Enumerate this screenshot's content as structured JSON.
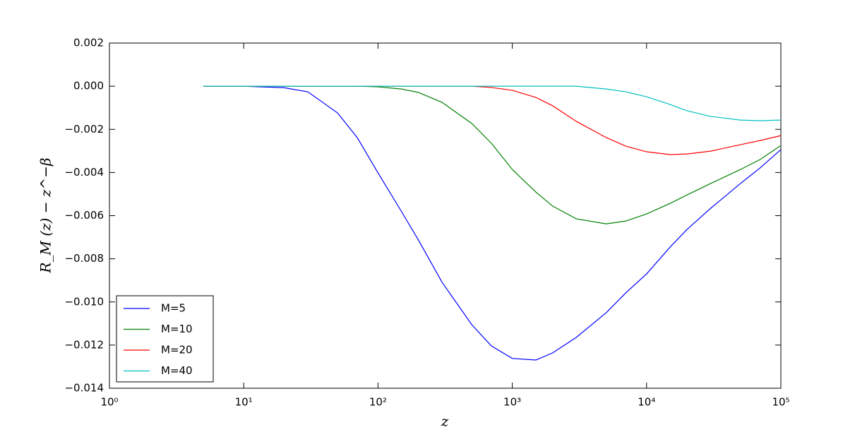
{
  "chart_data": {
    "type": "line",
    "xlabel": "z",
    "ylabel": "R_M (z) − z^−β",
    "xscale": "log",
    "legend": "lower left",
    "x": [
      5,
      10,
      20,
      30,
      50,
      70,
      100,
      150,
      200,
      300,
      500,
      700,
      1000,
      1500,
      2000,
      3000,
      5000,
      7000,
      10000,
      15000,
      20000,
      30000,
      50000,
      70000,
      100000
    ],
    "series": [
      {
        "name": "M=5",
        "color": "#0000ff",
        "values": [
          0,
          0,
          -7e-05,
          -0.00026,
          -0.00124,
          -0.00238,
          -0.00402,
          -0.00582,
          -0.00713,
          -0.00909,
          -0.01106,
          -0.01204,
          -0.01262,
          -0.01269,
          -0.01236,
          -0.01164,
          -0.0105,
          -0.00958,
          -0.0087,
          -0.00745,
          -0.00664,
          -0.00566,
          -0.00451,
          -0.00379,
          -0.00294
        ]
      },
      {
        "name": "M=10",
        "color": "#008000",
        "values": [
          0,
          0,
          0,
          0,
          0,
          0,
          -3e-05,
          -0.00013,
          -0.00029,
          -0.00075,
          -0.00173,
          -0.00265,
          -0.00386,
          -0.00491,
          -0.00556,
          -0.00615,
          -0.00638,
          -0.00625,
          -0.00592,
          -0.00543,
          -0.00504,
          -0.00451,
          -0.00386,
          -0.0034,
          -0.00275
        ]
      },
      {
        "name": "M=20",
        "color": "#ff0000",
        "values": [
          0,
          0,
          0,
          0,
          0,
          0,
          0,
          0,
          0,
          0,
          0,
          -6e-05,
          -0.00019,
          -0.00052,
          -0.00091,
          -0.00163,
          -0.00238,
          -0.00278,
          -0.00304,
          -0.00317,
          -0.00314,
          -0.00301,
          -0.00271,
          -0.00252,
          -0.00229
        ]
      },
      {
        "name": "M=40",
        "color": "#00bfbf",
        "values": [
          0,
          0,
          0,
          0,
          0,
          0,
          0,
          0,
          0,
          0,
          0,
          0,
          0,
          0,
          0,
          0,
          -0.00013,
          -0.00026,
          -0.00049,
          -0.00085,
          -0.00114,
          -0.0014,
          -0.00157,
          -0.0016,
          -0.00157
        ]
      }
    ],
    "xlim": [
      1,
      100000
    ],
    "xticks": [
      {
        "value": 1,
        "label": "10⁰"
      },
      {
        "value": 10,
        "label": "10¹"
      },
      {
        "value": 100,
        "label": "10²"
      },
      {
        "value": 1000,
        "label": "10³"
      },
      {
        "value": 10000,
        "label": "10⁴"
      },
      {
        "value": 100000,
        "label": "10⁵"
      }
    ],
    "ylim": [
      -0.014,
      0.002
    ],
    "yticks": [
      {
        "value": -0.014,
        "label": "−0.014"
      },
      {
        "value": -0.012,
        "label": "−0.012"
      },
      {
        "value": -0.01,
        "label": "−0.010"
      },
      {
        "value": -0.008,
        "label": "−0.008"
      },
      {
        "value": -0.006,
        "label": "−0.006"
      },
      {
        "value": -0.004,
        "label": "−0.004"
      },
      {
        "value": -0.002,
        "label": "−0.002"
      },
      {
        "value": 0,
        "label": "0.000"
      },
      0.002
    ]
  }
}
